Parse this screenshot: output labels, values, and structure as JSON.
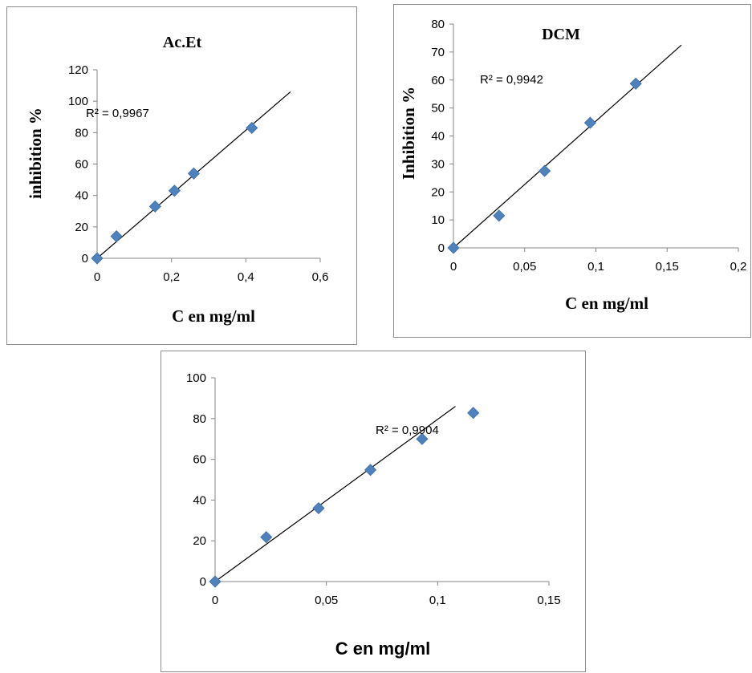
{
  "chart_data": [
    {
      "type": "scatter",
      "title": "Ac.Et",
      "xlabel": "C en mg/ml",
      "ylabel": "inhibition %",
      "xlim": [
        0,
        0.6
      ],
      "ylim": [
        0,
        120
      ],
      "x_ticks": [
        "0",
        "0,2",
        "0,4",
        "0,6"
      ],
      "y_ticks": [
        "0",
        "20",
        "40",
        "60",
        "80",
        "100",
        "120"
      ],
      "x_tick_values": [
        0,
        0.2,
        0.4,
        0.6
      ],
      "y_tick_values": [
        0,
        20,
        40,
        60,
        80,
        100,
        120
      ],
      "points": [
        [
          0,
          0
        ],
        [
          0.052,
          14
        ],
        [
          0.156,
          33
        ],
        [
          0.208,
          43
        ],
        [
          0.26,
          54
        ],
        [
          0.416,
          83
        ]
      ],
      "trendline": {
        "x": [
          0,
          0.52
        ],
        "y": [
          0,
          106
        ]
      },
      "annotation": "R² = 0,9967",
      "grid": false,
      "marker_color": "#4f81bd"
    },
    {
      "type": "scatter",
      "title": "DCM",
      "xlabel": "C en mg/ml",
      "ylabel": "Inhibition %",
      "xlim": [
        0,
        0.2
      ],
      "ylim": [
        0,
        80
      ],
      "x_ticks": [
        "0",
        "0,05",
        "0,1",
        "0,15",
        "0,2"
      ],
      "y_ticks": [
        "0",
        "10",
        "20",
        "30",
        "40",
        "50",
        "60",
        "70",
        "80"
      ],
      "x_tick_values": [
        0,
        0.05,
        0.1,
        0.15,
        0.2
      ],
      "y_tick_values": [
        0,
        10,
        20,
        30,
        40,
        50,
        60,
        70,
        80
      ],
      "points": [
        [
          0,
          0
        ],
        [
          0.032,
          11.5
        ],
        [
          0.064,
          27.5
        ],
        [
          0.096,
          44.7
        ],
        [
          0.128,
          58.7
        ]
      ],
      "trendline": {
        "x": [
          0,
          0.16
        ],
        "y": [
          0,
          72.5
        ]
      },
      "annotation": "R² = 0,9942",
      "grid": false,
      "marker_color": "#4f81bd"
    },
    {
      "type": "scatter",
      "title": "",
      "xlabel": "C en mg/ml",
      "ylabel": "",
      "xlim": [
        0,
        0.15
      ],
      "ylim": [
        0,
        100
      ],
      "x_ticks": [
        "0",
        "0,05",
        "0,1",
        "0,15"
      ],
      "y_ticks": [
        "0",
        "20",
        "40",
        "60",
        "80",
        "100"
      ],
      "x_tick_values": [
        0,
        0.05,
        0.1,
        0.15
      ],
      "y_tick_values": [
        0,
        20,
        40,
        60,
        80,
        100
      ],
      "points": [
        [
          0,
          0
        ],
        [
          0.023,
          21.8
        ],
        [
          0.0465,
          36
        ],
        [
          0.0698,
          54.8
        ],
        [
          0.093,
          70
        ],
        [
          0.116,
          82.8
        ]
      ],
      "trendline": {
        "x": [
          0,
          0.108
        ],
        "y": [
          0,
          86
        ]
      },
      "annotation": "R² = 0,9904",
      "grid": false,
      "marker_color": "#4f81bd"
    }
  ]
}
